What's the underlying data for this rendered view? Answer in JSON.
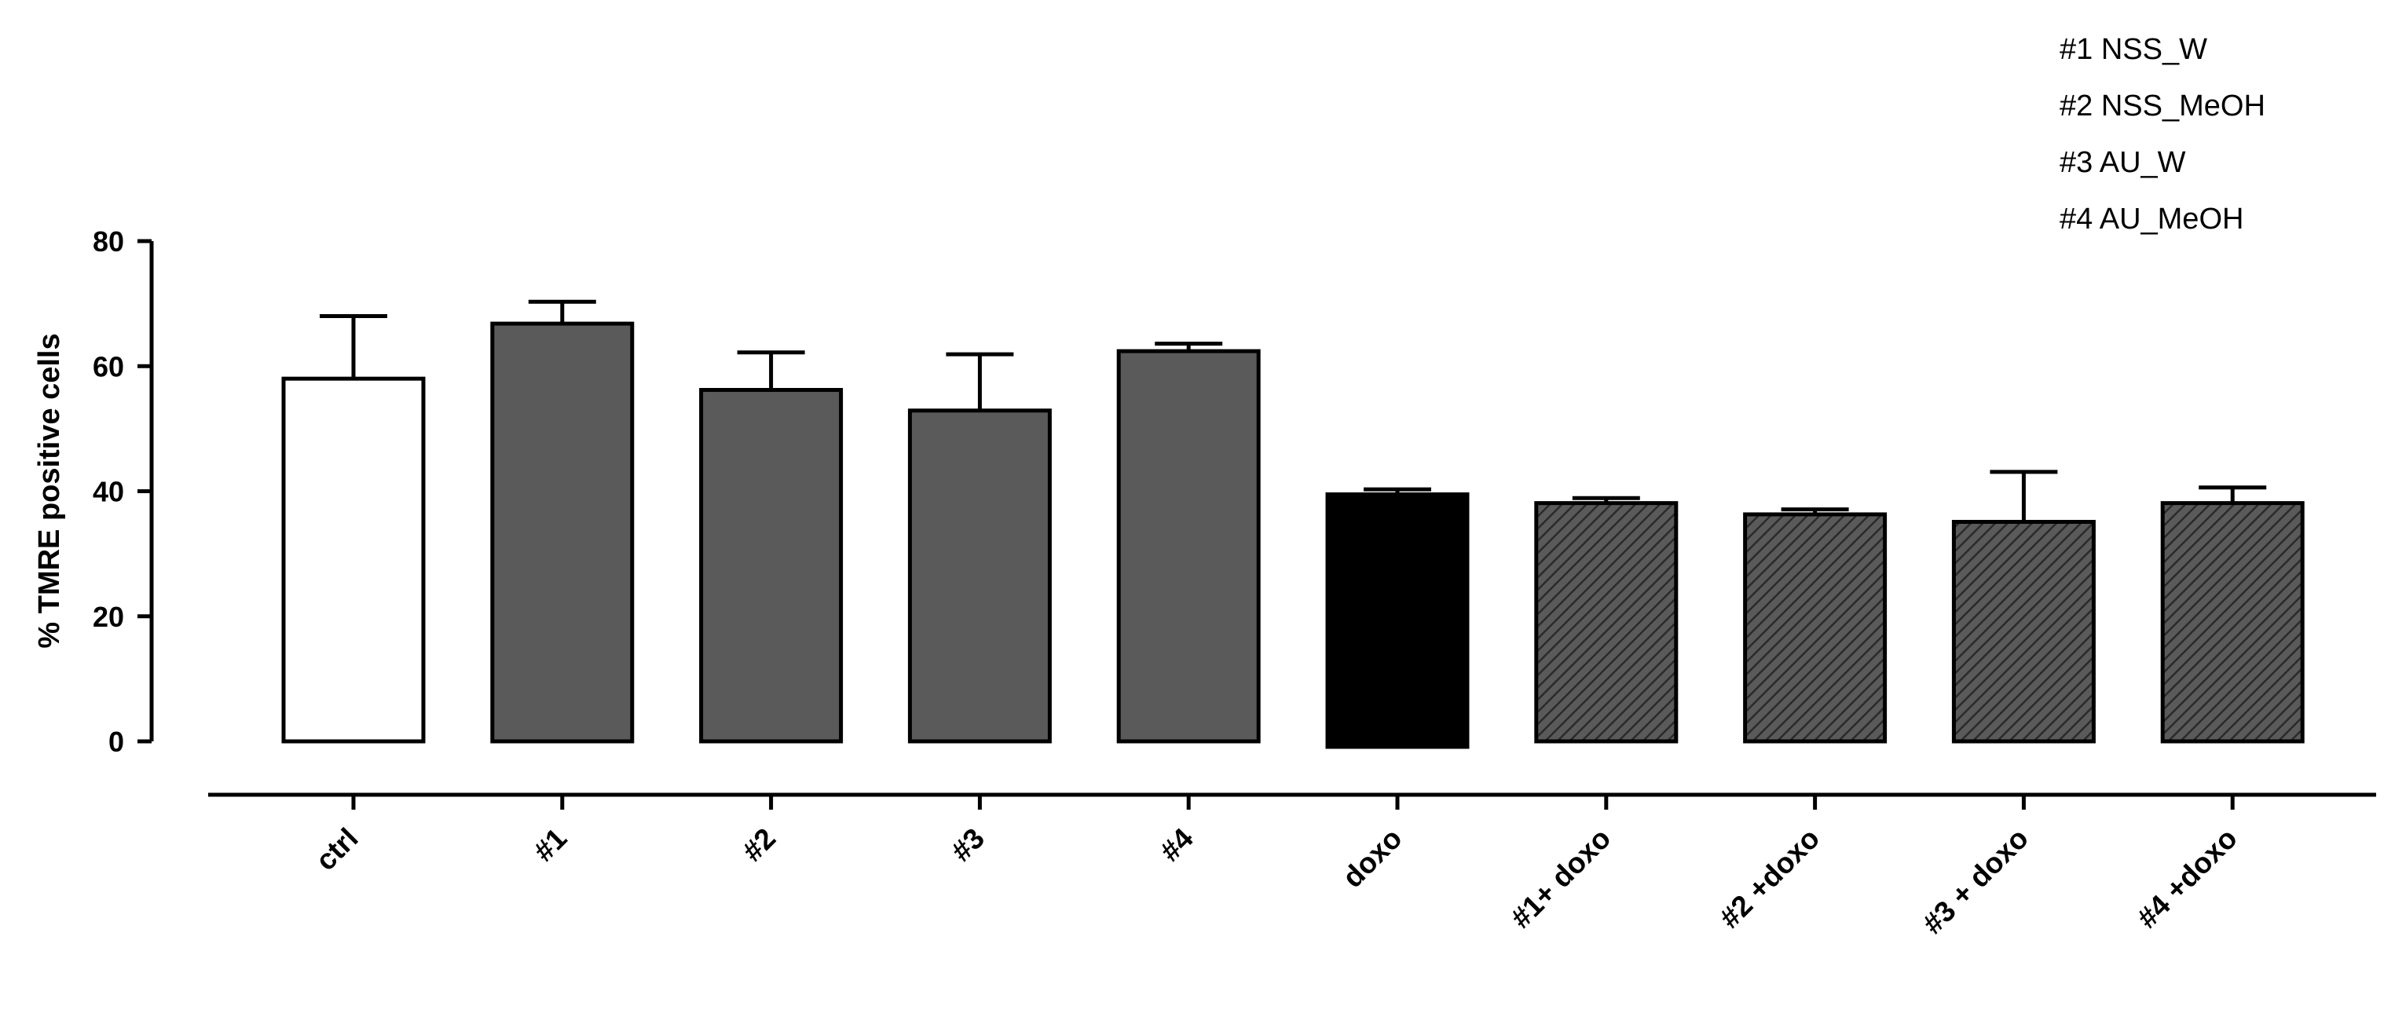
{
  "chart_data": {
    "type": "bar",
    "title": "",
    "ylabel": "% TMRE positive cells",
    "xlabel": "",
    "ylim": [
      0,
      80
    ],
    "yticks": [
      0,
      20,
      40,
      60,
      80
    ],
    "categories": [
      "ctrl",
      "#1",
      "#2",
      "#3",
      "#4",
      "doxo",
      "#1+ doxo",
      "#2 +doxo",
      "#3 + doxo",
      "#4 +doxo"
    ],
    "values": [
      58,
      66.8,
      56.2,
      52.9,
      62.4,
      39.5,
      38.1,
      36.3,
      35.1,
      38.1
    ],
    "errors": [
      10,
      3.5,
      6,
      9,
      1.2,
      0.8,
      0.8,
      0.8,
      8,
      2.5
    ],
    "fills": [
      "white",
      "solid",
      "solid",
      "solid",
      "solid",
      "black",
      "hatched",
      "hatched",
      "hatched",
      "hatched"
    ],
    "colors": {
      "white": "#ffffff",
      "solid": "#5a5a5a",
      "black": "#000000",
      "hatched": "#5a5a5a"
    },
    "legend_position": "top-right",
    "legend": [
      "#1 NSS_W",
      "#2 NSS_MeOH",
      "#3 AU_W",
      "#4 AU_MeOH"
    ],
    "grid": false
  }
}
